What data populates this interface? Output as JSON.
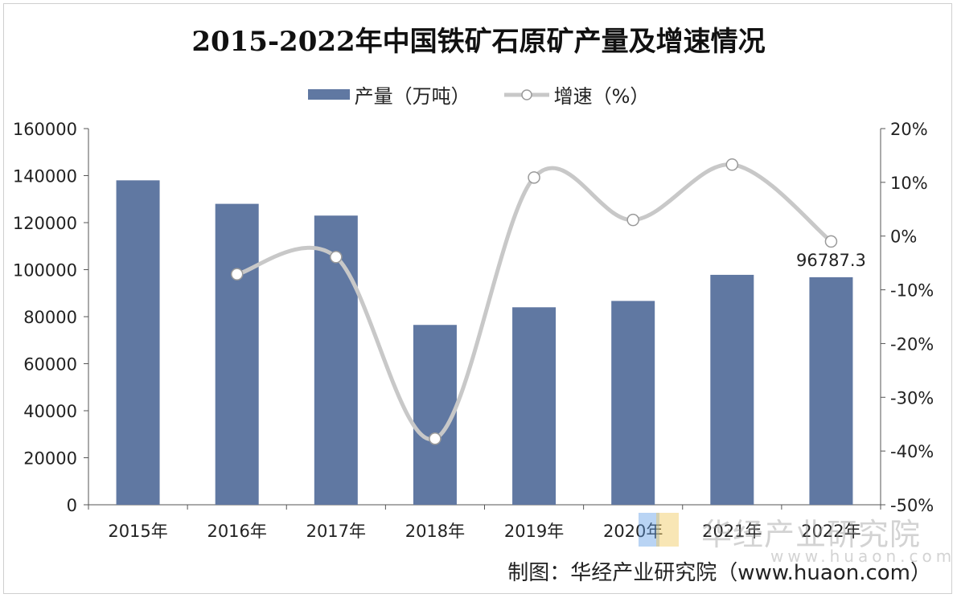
{
  "title": "2015-2022年中国铁矿石原矿产量及增速情况",
  "legend": {
    "bar_label": "产量（万吨）",
    "line_label": "增速（%）"
  },
  "credit": "制图：华经产业研究院（www.huaon.com）",
  "watermark": {
    "name": "华经产业研究院",
    "url": "www.huaon.com"
  },
  "colors": {
    "bar": "#6078a2",
    "line": "#c8c8c8",
    "marker_fill": "#ffffff",
    "marker_stroke": "#9a9a9a",
    "axis": "#555555"
  },
  "chart_data": {
    "type": "bar",
    "categories": [
      "2015年",
      "2016年",
      "2017年",
      "2018年",
      "2019年",
      "2020年",
      "2021年",
      "2022年"
    ],
    "series": [
      {
        "name": "产量（万吨）",
        "type": "bar",
        "axis": "left",
        "values": [
          138000,
          128000,
          123000,
          76500,
          84000,
          86700,
          97800,
          96787.3
        ]
      },
      {
        "name": "增速（%）",
        "type": "line",
        "axis": "right",
        "smooth": true,
        "values": [
          null,
          -7.1,
          -3.9,
          -37.7,
          10.9,
          3.0,
          13.3,
          -1.0
        ]
      }
    ],
    "data_labels": [
      {
        "series": 0,
        "index": 7,
        "text": "96787.3"
      }
    ],
    "left_axis": {
      "ylim": [
        0,
        160000
      ],
      "ticks": [
        "0",
        "20000",
        "40000",
        "60000",
        "80000",
        "100000",
        "120000",
        "140000",
        "160000"
      ]
    },
    "right_axis": {
      "ylim": [
        -50,
        20
      ],
      "ticks": [
        "-50%",
        "-40%",
        "-30%",
        "-20%",
        "-10%",
        "0%",
        "10%",
        "20%"
      ]
    },
    "grid": false,
    "legend_position": "top"
  }
}
